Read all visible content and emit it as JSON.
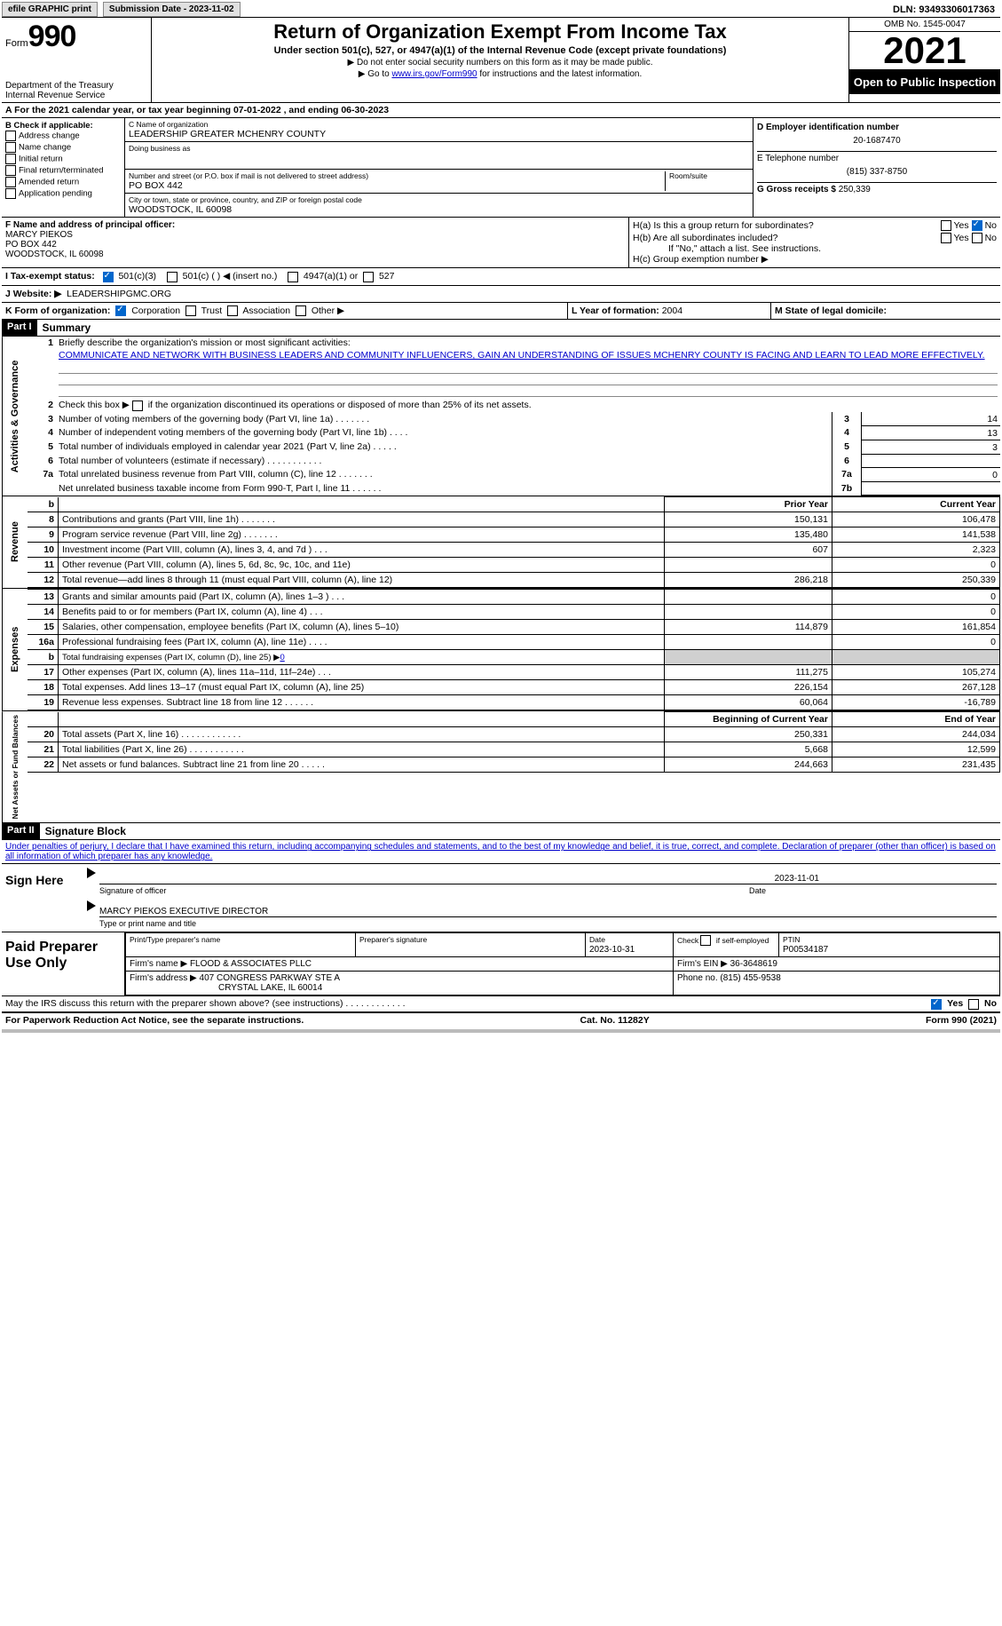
{
  "top": {
    "efile": "efile GRAPHIC print",
    "submission_label": "Submission Date - 2023-11-02",
    "dln": "DLN: 93493306017363"
  },
  "header": {
    "form_word": "Form",
    "form_num": "990",
    "dept": "Department of the Treasury",
    "irs": "Internal Revenue Service",
    "title": "Return of Organization Exempt From Income Tax",
    "sub": "Under section 501(c), 527, or 4947(a)(1) of the Internal Revenue Code (except private foundations)",
    "note1": "▶ Do not enter social security numbers on this form as it may be made public.",
    "note2_pre": "▶ Go to ",
    "note2_link": "www.irs.gov/Form990",
    "note2_post": " for instructions and the latest information.",
    "omb": "OMB No. 1545-0047",
    "year": "2021",
    "openpub": "Open to Public Inspection"
  },
  "lineA": "A  For the 2021 calendar year, or tax year beginning 07-01-2022    , and ending 06-30-2023",
  "boxB": {
    "title": "B Check if applicable:",
    "items": [
      "Address change",
      "Name change",
      "Initial return",
      "Final return/terminated",
      "Amended return",
      "Application pending"
    ]
  },
  "boxC": {
    "name_lbl": "C Name of organization",
    "name": "LEADERSHIP GREATER MCHENRY COUNTY",
    "dba_lbl": "Doing business as",
    "dba": "",
    "addr_lbl": "Number and street (or P.O. box if mail is not delivered to street address)",
    "room_lbl": "Room/suite",
    "addr": "PO BOX 442",
    "city_lbl": "City or town, state or province, country, and ZIP or foreign postal code",
    "city": "WOODSTOCK, IL  60098"
  },
  "boxD": {
    "ein_lbl": "D Employer identification number",
    "ein": "20-1687470",
    "tel_lbl": "E Telephone number",
    "tel": "(815) 337-8750",
    "gross_lbl": "G Gross receipts $",
    "gross": "250,339"
  },
  "boxF": {
    "lbl": "F Name and address of principal officer:",
    "name": "MARCY PIEKOS",
    "addr1": "PO BOX 442",
    "addr2": "WOODSTOCK, IL  60098"
  },
  "boxH": {
    "ha": "H(a)  Is this a group return for subordinates?",
    "hb": "H(b)  Are all subordinates included?",
    "hb_note": "If \"No,\" attach a list. See instructions.",
    "hc": "H(c)  Group exemption number ▶",
    "yes": "Yes",
    "no": "No"
  },
  "rowI": {
    "lbl": "I    Tax-exempt status:",
    "c3": "501(c)(3)",
    "c": "501(c) (  ) ◀ (insert no.)",
    "a4947": "4947(a)(1) or",
    "s527": "527"
  },
  "rowJ": {
    "lbl": "J   Website: ▶",
    "val": "LEADERSHIPGMC.ORG"
  },
  "rowK": {
    "lbl": "K Form of organization:",
    "corp": "Corporation",
    "trust": "Trust",
    "assoc": "Association",
    "other": "Other ▶"
  },
  "rowL": {
    "lbl": "L Year of formation:",
    "val": "2004"
  },
  "rowM": {
    "lbl": "M State of legal domicile:",
    "val": ""
  },
  "part1": {
    "hdr": "Part I",
    "title": "Summary",
    "l1": "Briefly describe the organization's mission or most significant activities:",
    "mission": "COMMUNICATE AND NETWORK WITH BUSINESS LEADERS AND COMMUNITY INFLUENCERS, GAIN AN UNDERSTANDING OF ISSUES MCHENRY COUNTY IS FACING AND LEARN TO LEAD MORE EFFECTIVELY.",
    "l2": "Check this box ▶     if the organization discontinued its operations or disposed of more than 25% of its net assets.",
    "rows": [
      {
        "n": "3",
        "t": "Number of voting members of the governing body (Part VI, line 1a)   .    .    .    .    .    .    .",
        "box": "3",
        "v": "14"
      },
      {
        "n": "4",
        "t": "Number of independent voting members of the governing body (Part VI, line 1b)    .    .    .    .",
        "box": "4",
        "v": "13"
      },
      {
        "n": "5",
        "t": "Total number of individuals employed in calendar year 2021 (Part V, line 2a)    .    .    .    .    .",
        "box": "5",
        "v": "3"
      },
      {
        "n": "6",
        "t": "Total number of volunteers (estimate if necessary)    .    .    .    .    .    .    .    .    .    .    .",
        "box": "6",
        "v": ""
      },
      {
        "n": "7a",
        "t": "Total unrelated business revenue from Part VIII, column (C), line 12    .    .    .    .    .    .    .",
        "box": "7a",
        "v": "0"
      },
      {
        "n": "",
        "t": "Net unrelated business taxable income from Form 990-T, Part I, line 11    .    .    .    .    .    .",
        "box": "7b",
        "v": ""
      }
    ],
    "vlabel_ag": "Activities & Governance",
    "vlabel_rev": "Revenue",
    "vlabel_exp": "Expenses",
    "vlabel_net": "Net Assets or Fund Balances",
    "col_prior": "Prior Year",
    "col_curr": "Current Year",
    "col_begin": "Beginning of Current Year",
    "col_end": "End of Year",
    "revenue": [
      {
        "n": "8",
        "t": "Contributions and grants (Part VIII, line 1h)    .    .    .    .    .    .    .",
        "p": "150,131",
        "c": "106,478"
      },
      {
        "n": "9",
        "t": "Program service revenue (Part VIII, line 2g)    .    .    .    .    .    .    .",
        "p": "135,480",
        "c": "141,538"
      },
      {
        "n": "10",
        "t": "Investment income (Part VIII, column (A), lines 3, 4, and 7d )    .    .    .",
        "p": "607",
        "c": "2,323"
      },
      {
        "n": "11",
        "t": "Other revenue (Part VIII, column (A), lines 5, 6d, 8c, 9c, 10c, and 11e)",
        "p": "",
        "c": "0"
      },
      {
        "n": "12",
        "t": "Total revenue—add lines 8 through 11 (must equal Part VIII, column (A), line 12)",
        "p": "286,218",
        "c": "250,339"
      }
    ],
    "expenses": [
      {
        "n": "13",
        "t": "Grants and similar amounts paid (Part IX, column (A), lines 1–3 )    .    .    .",
        "p": "",
        "c": "0"
      },
      {
        "n": "14",
        "t": "Benefits paid to or for members (Part IX, column (A), line 4)    .    .    .",
        "p": "",
        "c": "0"
      },
      {
        "n": "15",
        "t": "Salaries, other compensation, employee benefits (Part IX, column (A), lines 5–10)",
        "p": "114,879",
        "c": "161,854"
      },
      {
        "n": "16a",
        "t": "Professional fundraising fees (Part IX, column (A), line 11e)    .    .    .    .",
        "p": "",
        "c": "0"
      },
      {
        "n": "b",
        "t": "Total fundraising expenses (Part IX, column (D), line 25) ▶0",
        "p": "shade",
        "c": "shade"
      },
      {
        "n": "17",
        "t": "Other expenses (Part IX, column (A), lines 11a–11d, 11f–24e)    .    .    .",
        "p": "111,275",
        "c": "105,274"
      },
      {
        "n": "18",
        "t": "Total expenses. Add lines 13–17 (must equal Part IX, column (A), line 25)",
        "p": "226,154",
        "c": "267,128"
      },
      {
        "n": "19",
        "t": "Revenue less expenses. Subtract line 18 from line 12    .    .    .    .    .    .",
        "p": "60,064",
        "c": "-16,789"
      }
    ],
    "netassets": [
      {
        "n": "20",
        "t": "Total assets (Part X, line 16)    .    .    .    .    .    .    .    .    .    .    .    .",
        "p": "250,331",
        "c": "244,034"
      },
      {
        "n": "21",
        "t": "Total liabilities (Part X, line 26)    .    .    .    .    .    .    .    .    .    .    .",
        "p": "5,668",
        "c": "12,599"
      },
      {
        "n": "22",
        "t": "Net assets or fund balances. Subtract line 21 from line 20    .    .    .    .    .",
        "p": "244,663",
        "c": "231,435"
      }
    ],
    "b_label": "b"
  },
  "part2": {
    "hdr": "Part II",
    "title": "Signature Block",
    "decl": "Under penalties of perjury, I declare that I have examined this return, including accompanying schedules and statements, and to the best of my knowledge and belief, it is true, correct, and complete. Declaration of preparer (other than officer) is based on all information of which preparer has any knowledge.",
    "sign_here": "Sign Here",
    "sig_officer": "Signature of officer",
    "sig_date": "2023-11-01",
    "date_lbl": "Date",
    "officer_name": "MARCY PIEKOS  EXECUTIVE DIRECTOR",
    "type_lbl": "Type or print name and title",
    "paid": "Paid Preparer Use Only",
    "prep_name_lbl": "Print/Type preparer's name",
    "prep_sig_lbl": "Preparer's signature",
    "prep_date_lbl": "Date",
    "prep_date": "2023-10-31",
    "check_self": "Check       if self-employed",
    "ptin_lbl": "PTIN",
    "ptin": "P00534187",
    "firm_name_lbl": "Firm's name    ▶",
    "firm_name": "FLOOD & ASSOCIATES PLLC",
    "firm_ein_lbl": "Firm's EIN ▶",
    "firm_ein": "36-3648619",
    "firm_addr_lbl": "Firm's address ▶",
    "firm_addr1": "407 CONGRESS PARKWAY STE A",
    "firm_addr2": "CRYSTAL LAKE, IL  60014",
    "phone_lbl": "Phone no.",
    "phone": "(815) 455-9538",
    "discuss": "May the IRS discuss this return with the preparer shown above? (see instructions)    .    .    .    .    .    .    .    .    .    .    .    .",
    "yes": "Yes",
    "no": "No"
  },
  "footer": {
    "pra": "For Paperwork Reduction Act Notice, see the separate instructions.",
    "cat": "Cat. No. 11282Y",
    "form": "Form 990 (2021)"
  },
  "colors": {
    "link": "#0000cc",
    "black": "#000",
    "shade": "#d0d0d0"
  }
}
